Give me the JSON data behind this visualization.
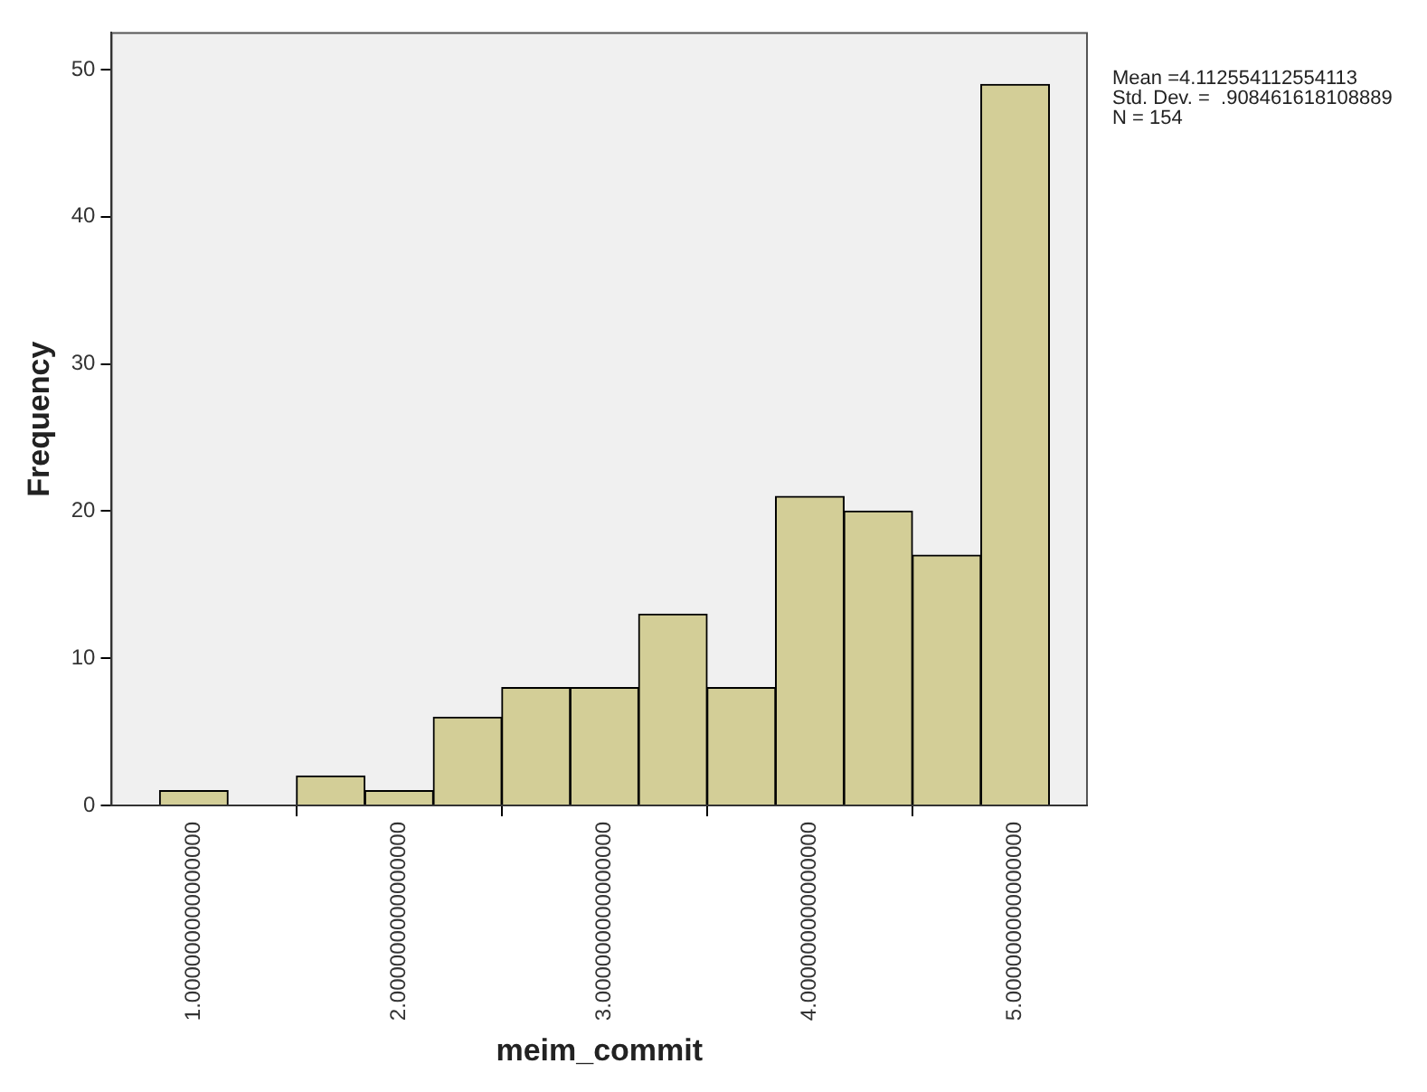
{
  "chart_data": {
    "type": "histogram",
    "xlabel": "meim_commit",
    "ylabel": "Frequency",
    "bins": [
      0.8333,
      1.1667,
      1.5,
      1.8333,
      2.1667,
      2.5,
      2.8333,
      3.1667,
      3.5,
      3.8333,
      4.1667,
      4.5,
      4.8333,
      5.1667
    ],
    "values": [
      1,
      0,
      2,
      1,
      6,
      8,
      8,
      13,
      8,
      21,
      20,
      17,
      49
    ],
    "color": "#d3ce97",
    "xlim": [
      0.6,
      5.35
    ],
    "xticks": [
      {
        "value": 1,
        "label": "1.000000000000000"
      },
      {
        "value": 2,
        "label": "2.000000000000000"
      },
      {
        "value": 3,
        "label": "3.000000000000000"
      },
      {
        "value": 4,
        "label": "4.000000000000000"
      },
      {
        "value": 5,
        "label": "5.000000000000000"
      }
    ],
    "ylim": [
      0,
      52.5
    ],
    "yticks": [
      0,
      10,
      20,
      30,
      40,
      50
    ],
    "grid": false,
    "annotations": [
      "Mean =4.112554112554113",
      "Std. Dev. =  .908461618108889",
      "N = 154"
    ]
  }
}
